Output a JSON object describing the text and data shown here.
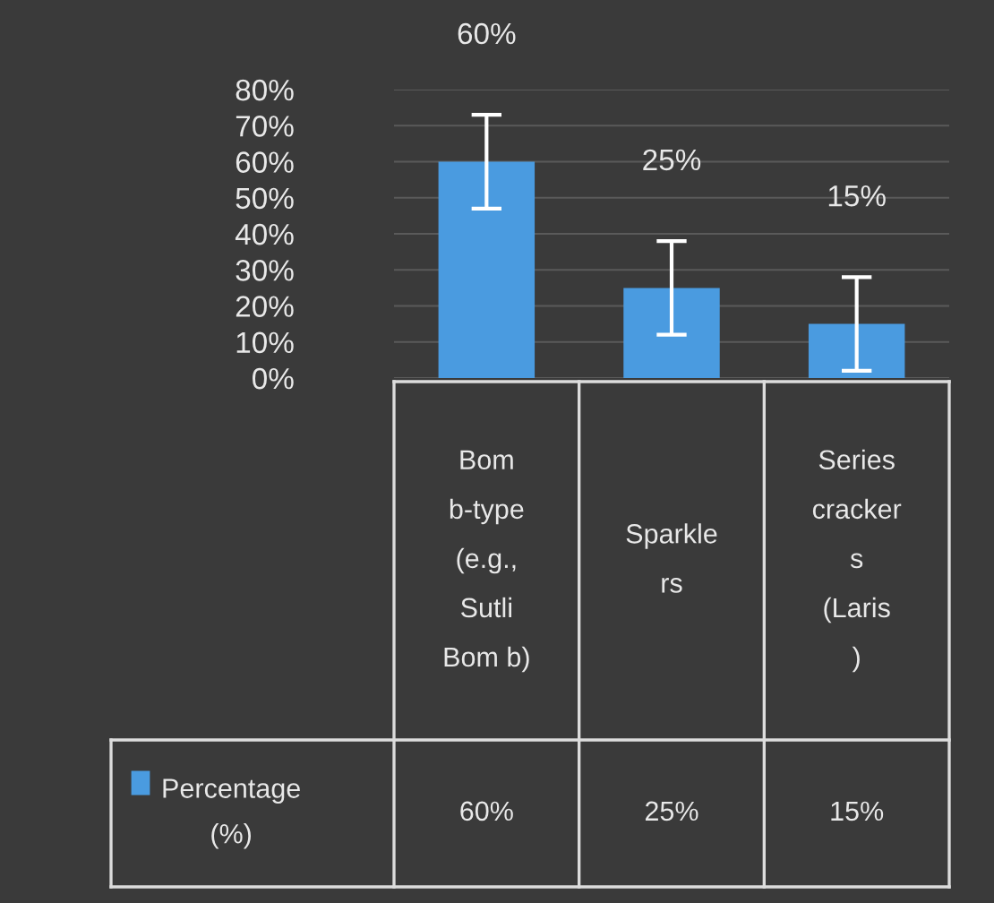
{
  "chart_data": {
    "type": "bar",
    "categories": [
      "Bom b-type (e.g., Sutli Bom b)",
      "Sparklers",
      "Series crackers (Laris )"
    ],
    "series": [
      {
        "name": "Percentage (%)",
        "color": "#4a9be0",
        "values": [
          60,
          25,
          15
        ],
        "errors": [
          13,
          13,
          13
        ],
        "value_labels": [
          "60%",
          "25%",
          "15%"
        ]
      }
    ],
    "ylim": [
      0,
      80
    ],
    "yticks": [
      {
        "value": 0,
        "label": "0%"
      },
      {
        "value": 10,
        "label": "10%"
      },
      {
        "value": 20,
        "label": "20%"
      },
      {
        "value": 30,
        "label": "30%"
      },
      {
        "value": 40,
        "label": "40%"
      },
      {
        "value": 50,
        "label": "50%"
      },
      {
        "value": 60,
        "label": "60%"
      },
      {
        "value": 70,
        "label": "70%"
      },
      {
        "value": 80,
        "label": "80%"
      }
    ],
    "grid": "y",
    "legend": "bottom left"
  }
}
